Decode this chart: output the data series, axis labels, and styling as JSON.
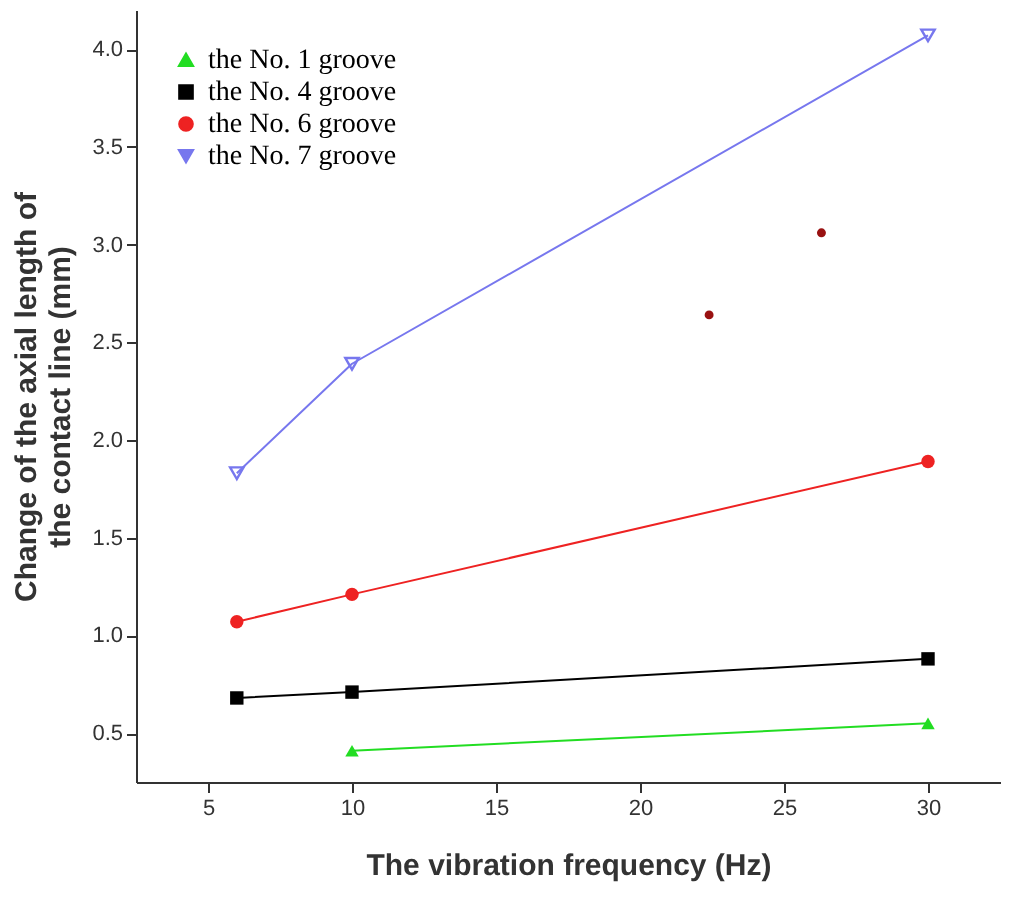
{
  "chart_data": {
    "type": "line",
    "xlabel": "The vibration frequency (Hz)",
    "ylabel": "Change of the axial length of the contact line (mm)",
    "xlim": [
      2.5,
      32.5
    ],
    "xticks": [
      5,
      10,
      15,
      20,
      25,
      30
    ],
    "ylim": [
      0.25,
      4.2
    ],
    "yticks": [
      0.5,
      {
        "value": 1,
        "label": "1.0"
      },
      1.5,
      {
        "value": 2,
        "label": "2.0"
      },
      2.5,
      {
        "value": 3,
        "label": "3.0"
      },
      3.5,
      {
        "value": 4,
        "label": "4.0"
      }
    ],
    "grid": false,
    "legend": "top left",
    "line_style": "solid",
    "series": [
      {
        "name": "the No. 1 groove",
        "color": "#22dd22",
        "marker": "triangle",
        "x": [
          10,
          30
        ],
        "values": [
          0.41,
          0.55
        ]
      },
      {
        "name": "the No. 4 groove",
        "color": "#000000",
        "marker": "square",
        "x": [
          6,
          10,
          30
        ],
        "values": [
          0.68,
          0.71,
          0.88
        ]
      },
      {
        "name": "the No. 6 groove",
        "color": "#ee2222",
        "marker": "circle",
        "x": [
          6,
          10,
          30
        ],
        "values": [
          1.07,
          1.21,
          1.89
        ]
      },
      {
        "name": "the No. 7 groove",
        "color": "#7777ee",
        "marker": "triangle-down",
        "x": [
          6,
          10,
          30
        ],
        "values": [
          1.83,
          2.39,
          4.07
        ]
      },
      {
        "type": "scatter",
        "color": "#991111",
        "marker": "circle",
        "x": [
          22.4,
          26.3
        ],
        "values": [
          2.64,
          3.06
        ]
      }
    ]
  }
}
